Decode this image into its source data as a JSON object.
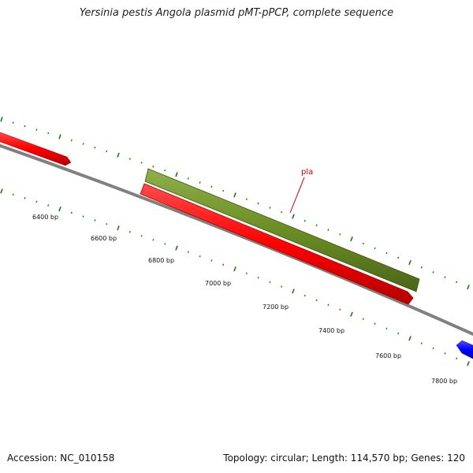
{
  "title": "Yersinia pestis Angola plasmid pMT-pPCP, complete sequence",
  "accession": "Accession: NC_010158",
  "summary": "Topology: circular; Length: 114,570 bp; Genes: 120",
  "bp_labels": [
    "6400 bp",
    "6600 bp",
    "6800 bp",
    "7000 bp",
    "7200 bp",
    "7400 bp",
    "7600 bp",
    "7800 bp"
  ],
  "gene_label": "pla",
  "colors": {
    "backbone": "#808080",
    "forward_gene": "#ff1a1a",
    "reverse_gene": "#6b8e23",
    "other_gene": "#1a1aff",
    "tick": "#1a7a1a",
    "gene_label": "#cc0000"
  }
}
